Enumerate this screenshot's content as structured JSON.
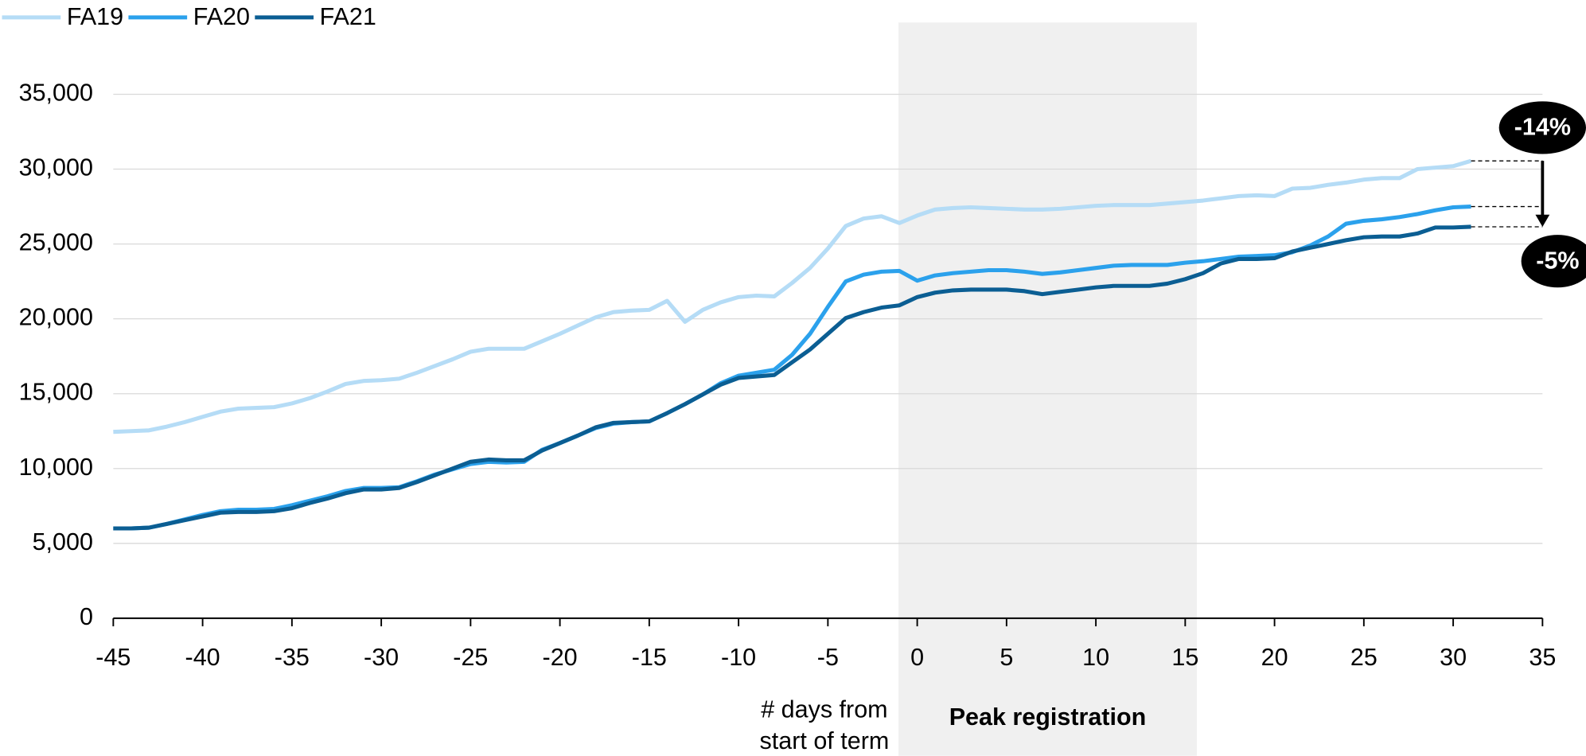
{
  "chart_data": {
    "type": "line",
    "x": [
      -45,
      -44,
      -43,
      -42,
      -41,
      -40,
      -39,
      -38,
      -37,
      -36,
      -35,
      -34,
      -33,
      -32,
      -31,
      -30,
      -29,
      -28,
      -27,
      -26,
      -25,
      -24,
      -23,
      -22,
      -21,
      -20,
      -19,
      -18,
      -17,
      -16,
      -15,
      -14,
      -13,
      -12,
      -11,
      -10,
      -9,
      -8,
      -7,
      -6,
      -5,
      -4,
      -3,
      -2,
      -1,
      0,
      1,
      2,
      3,
      4,
      5,
      6,
      7,
      8,
      9,
      10,
      11,
      12,
      13,
      14,
      15,
      16,
      17,
      18,
      19,
      20,
      21,
      22,
      23,
      24,
      25,
      26,
      27,
      28,
      29,
      30,
      31
    ],
    "series": [
      {
        "name": "FA19",
        "color": "#b5dcf6",
        "values": [
          12450,
          12500,
          12550,
          12800,
          13100,
          13450,
          13800,
          14000,
          14050,
          14100,
          14350,
          14700,
          15150,
          15650,
          15850,
          15900,
          16000,
          16400,
          16850,
          17300,
          17800,
          18000,
          18000,
          18000,
          18500,
          19000,
          19550,
          20100,
          20450,
          20550,
          20600,
          21200,
          19800,
          20600,
          21100,
          21450,
          21550,
          21500,
          22400,
          23400,
          24700,
          26200,
          26700,
          26850,
          26400,
          26900,
          27300,
          27400,
          27450,
          27400,
          27350,
          27300,
          27300,
          27350,
          27450,
          27550,
          27600,
          27600,
          27600,
          27700,
          27800,
          27900,
          28050,
          28200,
          28250,
          28200,
          28700,
          28750,
          28950,
          29100,
          29300,
          29400,
          29400,
          30000,
          30100,
          30200,
          30550
        ]
      },
      {
        "name": "FA20",
        "color": "#2ba1ec",
        "values": [
          6000,
          6000,
          6050,
          6300,
          6600,
          6900,
          7150,
          7250,
          7250,
          7300,
          7550,
          7850,
          8150,
          8500,
          8700,
          8700,
          8750,
          9150,
          9600,
          9950,
          10300,
          10450,
          10400,
          10450,
          11250,
          11700,
          12200,
          12700,
          13000,
          13100,
          13150,
          13700,
          14300,
          14950,
          15700,
          16200,
          16400,
          16600,
          17600,
          19000,
          20800,
          22500,
          22950,
          23150,
          23200,
          22550,
          22900,
          23050,
          23150,
          23250,
          23250,
          23150,
          23000,
          23100,
          23250,
          23400,
          23550,
          23600,
          23600,
          23600,
          23750,
          23850,
          24000,
          24150,
          24200,
          24250,
          24450,
          24900,
          25500,
          26350,
          26550,
          26650,
          26800,
          27000,
          27250,
          27450,
          27500
        ]
      },
      {
        "name": "FA21",
        "color": "#0b5e93",
        "values": [
          6000,
          6000,
          6050,
          6300,
          6550,
          6800,
          7050,
          7100,
          7100,
          7150,
          7350,
          7700,
          8000,
          8350,
          8600,
          8600,
          8700,
          9100,
          9550,
          10000,
          10450,
          10600,
          10550,
          10550,
          11200,
          11700,
          12200,
          12750,
          13050,
          13100,
          13150,
          13700,
          14300,
          14950,
          15600,
          16050,
          16150,
          16250,
          17100,
          17950,
          19000,
          20050,
          20450,
          20750,
          20900,
          21450,
          21750,
          21900,
          21950,
          21950,
          21950,
          21850,
          21650,
          21800,
          21950,
          22100,
          22200,
          22200,
          22200,
          22350,
          22650,
          23050,
          23700,
          24000,
          24000,
          24050,
          24500,
          24750,
          25000,
          25250,
          25450,
          25500,
          25500,
          25700,
          26100,
          26100,
          26150
        ]
      }
    ],
    "xlim": [
      -45,
      35
    ],
    "xticks": [
      -45,
      -40,
      -35,
      -30,
      -25,
      -20,
      -15,
      -10,
      -5,
      0,
      5,
      10,
      15,
      20,
      25,
      30,
      35
    ],
    "ylim": [
      0,
      35000
    ],
    "yticks": [
      0,
      {
        "value": 5000,
        "label": "5,000"
      },
      {
        "value": 10000,
        "label": "10,000"
      },
      {
        "value": 15000,
        "label": "15,000"
      },
      {
        "value": 20000,
        "label": "20,000"
      },
      {
        "value": 25000,
        "label": "25,000"
      },
      {
        "value": 30000,
        "label": "30,000"
      },
      {
        "value": 35000,
        "label": "35,000"
      }
    ],
    "grid": true,
    "legend": "top-left",
    "x_label": "# days from start of term",
    "shaded_region": {
      "label": "Peak registration",
      "xrange": [
        -1.05,
        15.65
      ]
    },
    "annotations": [
      {
        "text": "-14%"
      },
      {
        "text": "-5%"
      }
    ]
  }
}
